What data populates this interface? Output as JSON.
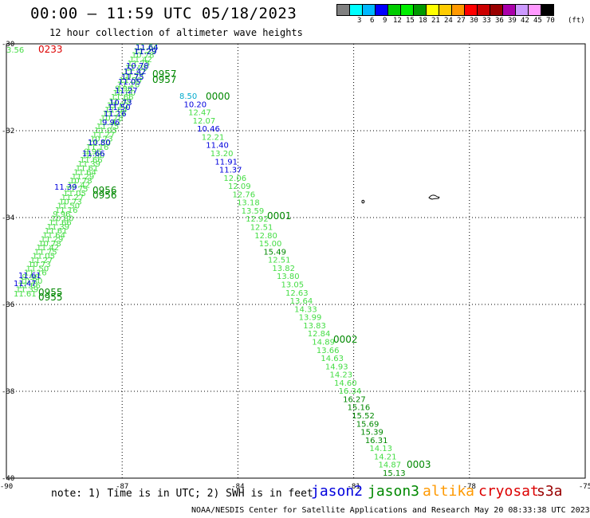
{
  "header": {
    "title": "00:00 – 11:59 UTC 05/18/2023",
    "subtitle": "12 hour collection of altimeter wave heights"
  },
  "color_scale": {
    "unit": "(ft)",
    "entries": [
      {
        "label": "",
        "color": "#808080"
      },
      {
        "label": "3",
        "color": "#00ffff"
      },
      {
        "label": "6",
        "color": "#00b8ff"
      },
      {
        "label": "9",
        "color": "#0000ff"
      },
      {
        "label": "12",
        "color": "#00cc00"
      },
      {
        "label": "15",
        "color": "#00ee00"
      },
      {
        "label": "18",
        "color": "#009900"
      },
      {
        "label": "21",
        "color": "#ffff00"
      },
      {
        "label": "24",
        "color": "#ffcc00"
      },
      {
        "label": "27",
        "color": "#ff9900"
      },
      {
        "label": "30",
        "color": "#ff0000"
      },
      {
        "label": "33",
        "color": "#cc0000"
      },
      {
        "label": "36",
        "color": "#990000"
      },
      {
        "label": "39",
        "color": "#aa00aa"
      },
      {
        "label": "42",
        "color": "#cc99ff"
      },
      {
        "label": "45",
        "color": "#ff99ff"
      },
      {
        "label": "70",
        "color": "#000000"
      }
    ]
  },
  "map": {
    "lon_labels": [
      "-90",
      "-87",
      "-84",
      "-81",
      "-78",
      "-75"
    ],
    "lat_labels": [
      "-30",
      "-32",
      "-34",
      "-36",
      "-38",
      "-40"
    ],
    "colors": {
      "blue": "#0000dd",
      "green": "#008800",
      "light_green": "#44dd44",
      "red": "#dd0000",
      "cyan": "#00aacc"
    },
    "time_labels": [
      "0233",
      "0957",
      "0957",
      "0956",
      "0956",
      "0955",
      "0955",
      "0000",
      "0001",
      "0002",
      "0003"
    ],
    "west_track_values": [
      "3.56",
      "11.64",
      "11.29",
      "10.78",
      "11.42",
      "11.75",
      "11.05",
      "11.27",
      "10.73",
      "11.50",
      "11.16",
      "9.96",
      "10.80",
      "11.66",
      "11.39",
      "11.61",
      "11.47"
    ],
    "east_track_values": [
      "8.50",
      "10.20",
      "12.47",
      "12.07",
      "10.46",
      "12.21",
      "11.40",
      "13.20",
      "11.91",
      "11.37",
      "12.06",
      "12.09",
      "12.76",
      "13.18",
      "13.59",
      "12.92",
      "12.51",
      "12.80",
      "15.00",
      "15.49",
      "12.51",
      "13.82",
      "13.80",
      "13.05",
      "12.63",
      "13.64",
      "14.33",
      "13.99",
      "13.83",
      "12.84",
      "14.89",
      "13.66",
      "14.63",
      "14.93",
      "14.23",
      "14.60",
      "16.34",
      "16.27",
      "15.16",
      "15.52",
      "15.69",
      "15.39",
      "16.31",
      "14.13",
      "14.21",
      "14.87",
      "15.13"
    ]
  },
  "footer": {
    "note": "note: 1) Time is in UTC; 2) SWH is in feet",
    "missions": [
      {
        "name": "jason2",
        "color": "#0000dd"
      },
      {
        "name": "jason3",
        "color": "#008800"
      },
      {
        "name": "altika",
        "color": "#ff9900"
      },
      {
        "name": "cryosat",
        "color": "#dd0000"
      },
      {
        "name": "s3a",
        "color": "#990000"
      }
    ],
    "credit": "NOAA/NESDIS Center for Satellite Applications and Research    May 20 08:33:38 UTC 2023"
  }
}
